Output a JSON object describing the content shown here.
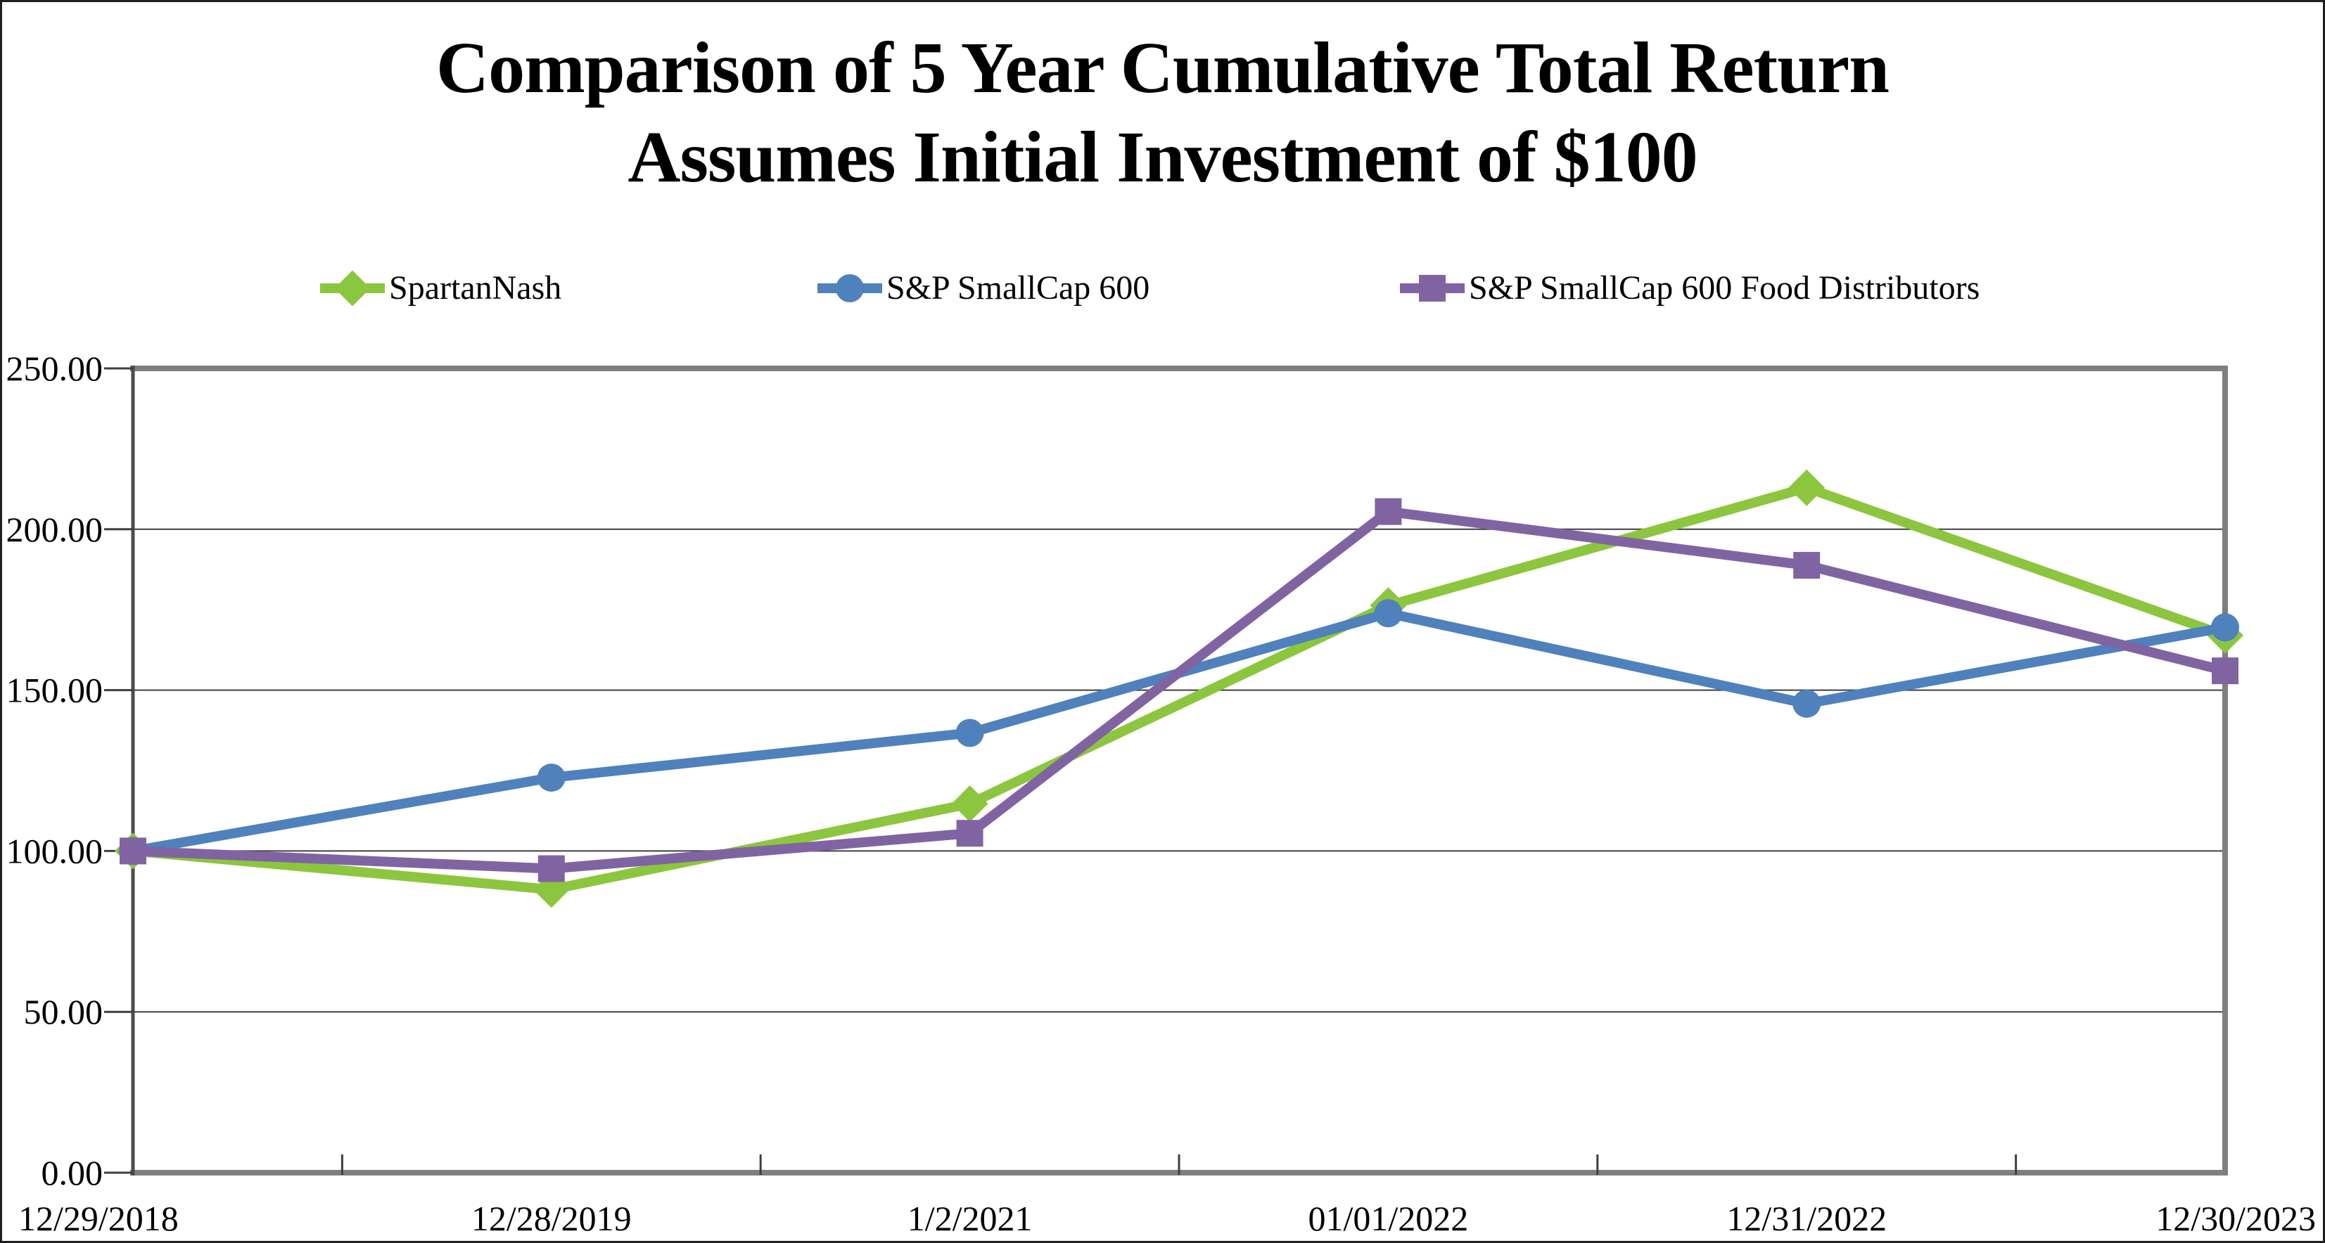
{
  "chart_data": {
    "type": "line",
    "title": "Comparison of 5 Year Cumulative Total Return",
    "subtitle": "Assumes Initial Investment of $100",
    "xlabel": "",
    "ylabel": "",
    "categories": [
      "12/29/2018",
      "12/28/2019",
      "1/2/2021",
      "01/01/2022",
      "12/31/2022",
      "12/30/2023"
    ],
    "series": [
      {
        "name": "SpartanNash",
        "marker": "diamond",
        "color": "#8CC63E",
        "values": [
          100.0,
          88.0,
          114.7,
          176.3,
          212.9,
          167.0
        ]
      },
      {
        "name": "S&P SmallCap 600",
        "marker": "circle",
        "color": "#4F81BD",
        "values": [
          100.0,
          122.8,
          136.7,
          173.9,
          145.8,
          169.5
        ]
      },
      {
        "name": "S&P SmallCap 600 Food Distributors",
        "marker": "square",
        "color": "#8064A2",
        "values": [
          100.0,
          94.5,
          105.5,
          205.5,
          188.8,
          156.0
        ]
      }
    ],
    "ylim": [
      0,
      250
    ],
    "ytick_step": 50,
    "ytick_labels": [
      "0.00",
      "50.00",
      "100.00",
      "150.00",
      "200.00",
      "250.00"
    ],
    "grid": "horizontal",
    "legend_position": "top",
    "colors": {
      "gridline": "#3f3f3f",
      "plot_border": "#7f7f7f",
      "value_axis": "#4d4d4d",
      "tick": "#3f3f3f",
      "text": "#000000",
      "background": "#ffffff"
    }
  }
}
